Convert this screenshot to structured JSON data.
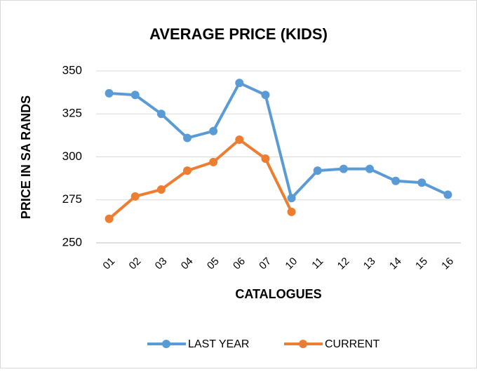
{
  "chart_data": {
    "type": "line",
    "title": "AVERAGE PRICE (KIDS)",
    "y_label": "PRICE IN SA RANDS",
    "x_label": "CATALOGUES",
    "categories": [
      "01",
      "02",
      "03",
      "04",
      "05",
      "06",
      "07",
      "10",
      "11",
      "12",
      "13",
      "14",
      "15",
      "16"
    ],
    "series": [
      {
        "name": "LAST YEAR",
        "color": "#5b9bd5",
        "values": [
          337,
          336,
          325,
          311,
          315,
          343,
          336,
          276,
          292,
          293,
          293,
          286,
          285,
          278
        ]
      },
      {
        "name": "CURRENT",
        "color": "#ed7d31",
        "values": [
          264,
          277,
          281,
          292,
          297,
          310,
          299,
          268,
          null,
          null,
          null,
          null,
          null,
          null
        ]
      }
    ],
    "ylim": [
      250,
      350
    ],
    "yticks": [
      250,
      275,
      300,
      325,
      350
    ],
    "grid": true,
    "legend": "bottom"
  }
}
